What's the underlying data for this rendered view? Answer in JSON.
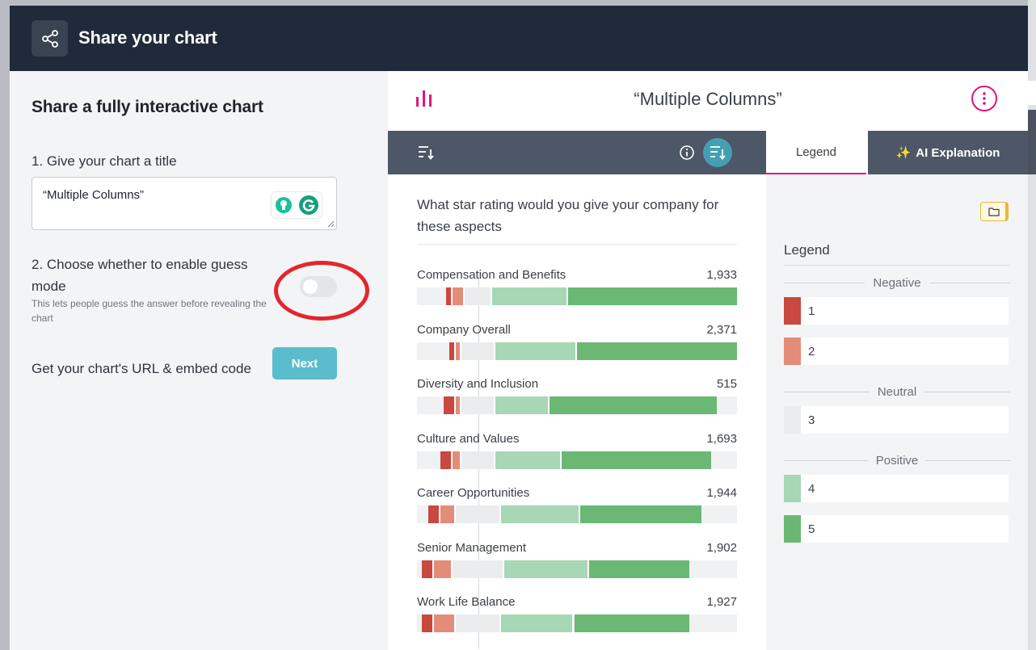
{
  "modal": {
    "title": "Share your chart"
  },
  "left": {
    "heading": "Share a fully interactive chart",
    "step1_label": "1. Give your chart a title",
    "title_value": "“Multiple Columns”",
    "step2_label": "2. Choose whether to enable guess mode",
    "step2_help": "This lets people guess the answer before revealing the chart",
    "guess_mode_enabled": false,
    "url_label": "Get your chart's URL & embed code",
    "next_label": "Next"
  },
  "chart_header": {
    "title": "“Multiple Columns”"
  },
  "tabs": {
    "legend": "Legend",
    "ai": "AI Explanation"
  },
  "colors": {
    "brand": "#e5137f",
    "accent": "#5bbccd",
    "rating_1": "#c9483f",
    "rating_2": "#e48c7a",
    "rating_3": "#ebecee",
    "rating_4": "#a7d7b5",
    "rating_5": "#6ab874"
  },
  "chart_data": {
    "type": "bar",
    "stacked": true,
    "diverging": true,
    "title": "What star rating would you give your company for these aspects",
    "categories": [
      "Compensation and Benefits",
      "Company Overall",
      "Diversity and Inclusion",
      "Culture and Values",
      "Career Opportunities",
      "Senior Management",
      "Work Life Balance"
    ],
    "counts": [
      "1,933",
      "2,371",
      "515",
      "1,693",
      "1,944",
      "1,902",
      "1,927"
    ],
    "series": [
      {
        "name": "1",
        "values": [
          2,
          2,
          4,
          4,
          4,
          4,
          4
        ]
      },
      {
        "name": "2",
        "values": [
          4,
          2,
          2,
          3,
          5,
          6,
          7
        ]
      },
      {
        "name": "3",
        "values": [
          9,
          11,
          11,
          11,
          15,
          17,
          15
        ]
      },
      {
        "name": "4",
        "values": [
          25,
          27,
          18,
          22,
          26,
          28,
          24
        ]
      },
      {
        "name": "5",
        "values": [
          60,
          58,
          55,
          49,
          40,
          33,
          38
        ]
      }
    ]
  },
  "legend": {
    "heading": "Legend",
    "groups": [
      {
        "name": "Negative",
        "items": [
          {
            "label": "1"
          },
          {
            "label": "2"
          }
        ]
      },
      {
        "name": "Neutral",
        "items": [
          {
            "label": "3"
          }
        ]
      },
      {
        "name": "Positive",
        "items": [
          {
            "label": "4"
          },
          {
            "label": "5"
          }
        ]
      }
    ]
  }
}
